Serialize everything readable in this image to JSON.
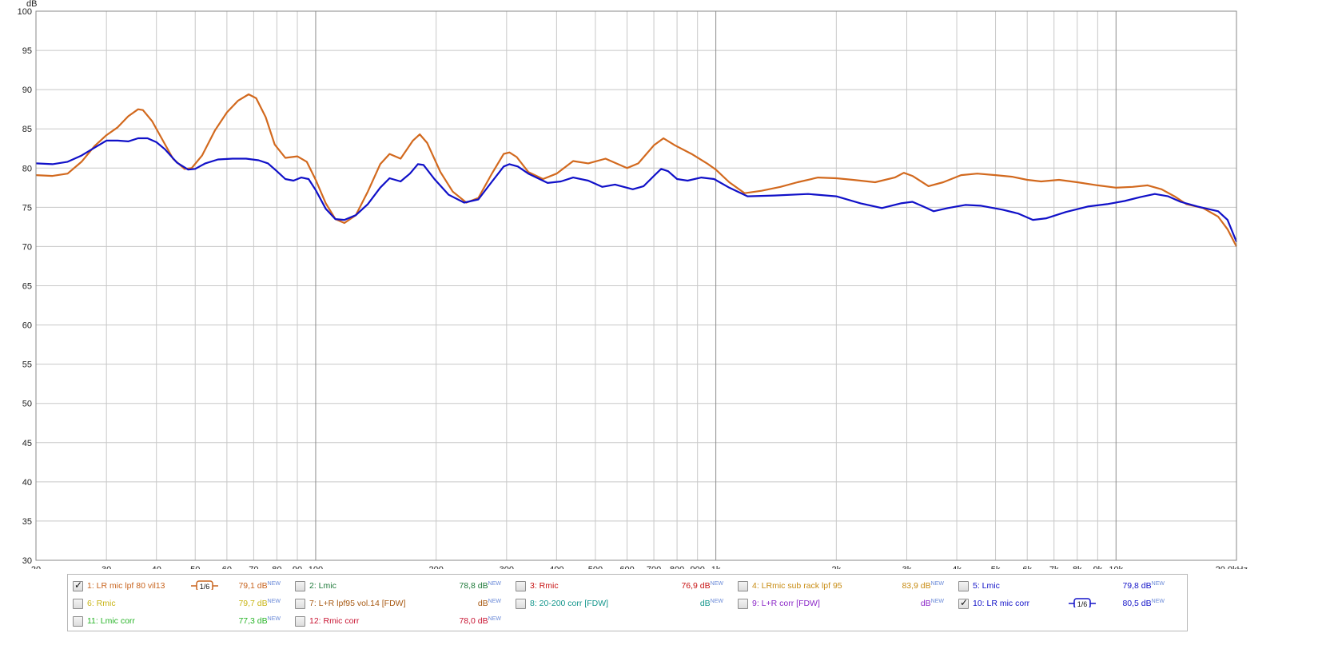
{
  "chart_data": {
    "type": "line",
    "x_scale": "log",
    "xlim": [
      20,
      20000
    ],
    "ylim": [
      30,
      100
    ],
    "ylabel": "dB",
    "y_ticks": [
      30,
      35,
      40,
      45,
      50,
      55,
      60,
      65,
      70,
      75,
      80,
      85,
      90,
      95,
      100
    ],
    "x_ticks": [
      {
        "v": 20,
        "label": "20"
      },
      {
        "v": 30,
        "label": "30"
      },
      {
        "v": 40,
        "label": "40"
      },
      {
        "v": 50,
        "label": "50"
      },
      {
        "v": 60,
        "label": "60"
      },
      {
        "v": 70,
        "label": "70"
      },
      {
        "v": 80,
        "label": "80"
      },
      {
        "v": 90,
        "label": "90"
      },
      {
        "v": 100,
        "label": "100"
      },
      {
        "v": 200,
        "label": "200"
      },
      {
        "v": 300,
        "label": "300"
      },
      {
        "v": 400,
        "label": "400"
      },
      {
        "v": 500,
        "label": "500"
      },
      {
        "v": 600,
        "label": "600"
      },
      {
        "v": 700,
        "label": "700"
      },
      {
        "v": 800,
        "label": "800"
      },
      {
        "v": 900,
        "label": "900"
      },
      {
        "v": 1000,
        "label": "1k"
      },
      {
        "v": 2000,
        "label": "2k"
      },
      {
        "v": 3000,
        "label": "3k"
      },
      {
        "v": 4000,
        "label": "4k"
      },
      {
        "v": 5000,
        "label": "5k"
      },
      {
        "v": 6000,
        "label": "6k"
      },
      {
        "v": 7000,
        "label": "7k"
      },
      {
        "v": 8000,
        "label": "8k"
      },
      {
        "v": 9000,
        "label": "9k"
      },
      {
        "v": 10000,
        "label": "10k"
      },
      {
        "v": 20000,
        "label": "20,0kHz"
      }
    ],
    "major_x": [
      100,
      1000,
      10000
    ],
    "grid": true,
    "series": [
      {
        "name": "1: LR mic lpf 80 vil13",
        "color": "#d2691e",
        "points": [
          [
            20,
            79.1
          ],
          [
            22,
            79.0
          ],
          [
            24,
            79.3
          ],
          [
            26,
            80.8
          ],
          [
            28,
            82.8
          ],
          [
            30,
            84.2
          ],
          [
            32,
            85.2
          ],
          [
            34,
            86.6
          ],
          [
            36,
            87.5
          ],
          [
            37,
            87.4
          ],
          [
            39,
            86.0
          ],
          [
            41,
            84.0
          ],
          [
            44,
            81.2
          ],
          [
            47,
            79.9
          ],
          [
            49,
            80.0
          ],
          [
            52,
            81.6
          ],
          [
            56,
            84.8
          ],
          [
            60,
            87.1
          ],
          [
            64,
            88.6
          ],
          [
            68,
            89.4
          ],
          [
            71,
            88.9
          ],
          [
            75,
            86.5
          ],
          [
            79,
            83.0
          ],
          [
            84,
            81.3
          ],
          [
            90,
            81.5
          ],
          [
            95,
            80.8
          ],
          [
            100,
            78.5
          ],
          [
            106,
            75.5
          ],
          [
            112,
            73.5
          ],
          [
            118,
            73.0
          ],
          [
            126,
            74.0
          ],
          [
            135,
            77.0
          ],
          [
            145,
            80.5
          ],
          [
            153,
            81.8
          ],
          [
            163,
            81.2
          ],
          [
            175,
            83.5
          ],
          [
            182,
            84.3
          ],
          [
            190,
            83.2
          ],
          [
            205,
            79.5
          ],
          [
            220,
            77.0
          ],
          [
            238,
            75.6
          ],
          [
            255,
            76.2
          ],
          [
            275,
            79.2
          ],
          [
            295,
            81.8
          ],
          [
            305,
            82.0
          ],
          [
            318,
            81.4
          ],
          [
            340,
            79.5
          ],
          [
            370,
            78.6
          ],
          [
            400,
            79.3
          ],
          [
            440,
            80.9
          ],
          [
            480,
            80.6
          ],
          [
            530,
            81.2
          ],
          [
            600,
            80.0
          ],
          [
            640,
            80.6
          ],
          [
            700,
            82.9
          ],
          [
            740,
            83.8
          ],
          [
            790,
            82.9
          ],
          [
            870,
            81.8
          ],
          [
            950,
            80.6
          ],
          [
            1000,
            79.8
          ],
          [
            1080,
            78.2
          ],
          [
            1180,
            76.8
          ],
          [
            1300,
            77.1
          ],
          [
            1450,
            77.6
          ],
          [
            1600,
            78.2
          ],
          [
            1800,
            78.8
          ],
          [
            2000,
            78.7
          ],
          [
            2200,
            78.5
          ],
          [
            2500,
            78.2
          ],
          [
            2800,
            78.8
          ],
          [
            2950,
            79.4
          ],
          [
            3100,
            79.0
          ],
          [
            3400,
            77.7
          ],
          [
            3700,
            78.2
          ],
          [
            4100,
            79.1
          ],
          [
            4500,
            79.3
          ],
          [
            5000,
            79.1
          ],
          [
            5500,
            78.9
          ],
          [
            6000,
            78.5
          ],
          [
            6500,
            78.3
          ],
          [
            7200,
            78.5
          ],
          [
            8000,
            78.2
          ],
          [
            9000,
            77.8
          ],
          [
            10000,
            77.5
          ],
          [
            11000,
            77.6
          ],
          [
            12000,
            77.8
          ],
          [
            13000,
            77.3
          ],
          [
            14000,
            76.4
          ],
          [
            15000,
            75.4
          ],
          [
            16500,
            74.9
          ],
          [
            18000,
            73.8
          ],
          [
            19000,
            72.2
          ],
          [
            20000,
            70.0
          ]
        ]
      },
      {
        "name": "10: LR mic corr",
        "color": "#1010c8",
        "points": [
          [
            20,
            80.6
          ],
          [
            22,
            80.5
          ],
          [
            24,
            80.8
          ],
          [
            26,
            81.6
          ],
          [
            28,
            82.6
          ],
          [
            30,
            83.5
          ],
          [
            32,
            83.5
          ],
          [
            34,
            83.4
          ],
          [
            36,
            83.8
          ],
          [
            38,
            83.8
          ],
          [
            40,
            83.3
          ],
          [
            42,
            82.4
          ],
          [
            45,
            80.7
          ],
          [
            48,
            79.8
          ],
          [
            50,
            79.9
          ],
          [
            53,
            80.6
          ],
          [
            57,
            81.1
          ],
          [
            62,
            81.2
          ],
          [
            67,
            81.2
          ],
          [
            72,
            81.0
          ],
          [
            76,
            80.6
          ],
          [
            80,
            79.6
          ],
          [
            84,
            78.6
          ],
          [
            88,
            78.4
          ],
          [
            92,
            78.8
          ],
          [
            96,
            78.6
          ],
          [
            100,
            77.2
          ],
          [
            106,
            74.8
          ],
          [
            112,
            73.5
          ],
          [
            118,
            73.4
          ],
          [
            126,
            74.0
          ],
          [
            135,
            75.4
          ],
          [
            145,
            77.5
          ],
          [
            153,
            78.7
          ],
          [
            163,
            78.3
          ],
          [
            172,
            79.3
          ],
          [
            180,
            80.5
          ],
          [
            186,
            80.4
          ],
          [
            198,
            78.6
          ],
          [
            215,
            76.6
          ],
          [
            235,
            75.6
          ],
          [
            255,
            76.0
          ],
          [
            275,
            78.2
          ],
          [
            295,
            80.2
          ],
          [
            305,
            80.5
          ],
          [
            320,
            80.2
          ],
          [
            340,
            79.3
          ],
          [
            380,
            78.1
          ],
          [
            410,
            78.3
          ],
          [
            440,
            78.8
          ],
          [
            480,
            78.4
          ],
          [
            520,
            77.6
          ],
          [
            560,
            77.9
          ],
          [
            620,
            77.3
          ],
          [
            660,
            77.7
          ],
          [
            700,
            79.0
          ],
          [
            730,
            79.9
          ],
          [
            760,
            79.6
          ],
          [
            800,
            78.6
          ],
          [
            850,
            78.4
          ],
          [
            920,
            78.8
          ],
          [
            990,
            78.6
          ],
          [
            1080,
            77.5
          ],
          [
            1200,
            76.4
          ],
          [
            1400,
            76.5
          ],
          [
            1700,
            76.7
          ],
          [
            2000,
            76.4
          ],
          [
            2300,
            75.5
          ],
          [
            2600,
            74.9
          ],
          [
            2900,
            75.5
          ],
          [
            3100,
            75.7
          ],
          [
            3300,
            75.1
          ],
          [
            3500,
            74.5
          ],
          [
            3800,
            74.9
          ],
          [
            4200,
            75.3
          ],
          [
            4600,
            75.2
          ],
          [
            5200,
            74.7
          ],
          [
            5700,
            74.2
          ],
          [
            6200,
            73.4
          ],
          [
            6700,
            73.6
          ],
          [
            7500,
            74.4
          ],
          [
            8500,
            75.1
          ],
          [
            9500,
            75.4
          ],
          [
            10500,
            75.8
          ],
          [
            11500,
            76.3
          ],
          [
            12500,
            76.7
          ],
          [
            13500,
            76.4
          ],
          [
            14500,
            75.7
          ],
          [
            16000,
            75.1
          ],
          [
            18000,
            74.5
          ],
          [
            19000,
            73.4
          ],
          [
            20000,
            70.6
          ]
        ]
      }
    ]
  },
  "legend": [
    {
      "name": "1: LR mic lpf 80 vil13",
      "value": "79,1 dB",
      "sup": "NEW",
      "color": "#c8641e",
      "checked": true,
      "smooth": "1/6",
      "smooth_color": "#c8641e"
    },
    {
      "name": "2: Lmic",
      "value": "78,8 dB",
      "sup": "NEW",
      "color": "#1f7a3a",
      "checked": false
    },
    {
      "name": "3: Rmic",
      "value": "76,9 dB",
      "sup": "NEW",
      "color": "#c81414",
      "checked": false
    },
    {
      "name": "4: LRmic sub rack lpf 95",
      "value": "83,9 dB",
      "sup": "NEW",
      "color": "#c88c14",
      "checked": false
    },
    {
      "name": "5: Lmic",
      "value": "79,8 dB",
      "sup": "NEW",
      "color": "#1414c8",
      "checked": false
    },
    {
      "name": "6: Rmic",
      "value": "79,7 dB",
      "sup": "NEW",
      "color": "#c8b414",
      "checked": false
    },
    {
      "name": "7: L+R lpf95 vol.14 [FDW]",
      "value": "dB",
      "sup": "NEW",
      "color": "#a85a14",
      "checked": false
    },
    {
      "name": "8: 20-200 corr [FDW]",
      "value": "dB",
      "sup": "NEW",
      "color": "#14968c",
      "checked": false
    },
    {
      "name": "9: L+R corr [FDW]",
      "value": "dB",
      "sup": "NEW",
      "color": "#8c28c8",
      "checked": false
    },
    {
      "name": "10: LR mic corr",
      "value": "80,5 dB",
      "sup": "NEW",
      "color": "#1414c8",
      "checked": true,
      "smooth": "1/6",
      "smooth_color": "#1414c8"
    },
    {
      "name": "11: Lmic corr",
      "value": "77,3 dB",
      "sup": "NEW",
      "color": "#28b428",
      "checked": false
    },
    {
      "name": "12: Rmic corr",
      "value": "78,0 dB",
      "sup": "NEW",
      "color": "#c81432",
      "checked": false
    }
  ],
  "check_glyph": "✓"
}
